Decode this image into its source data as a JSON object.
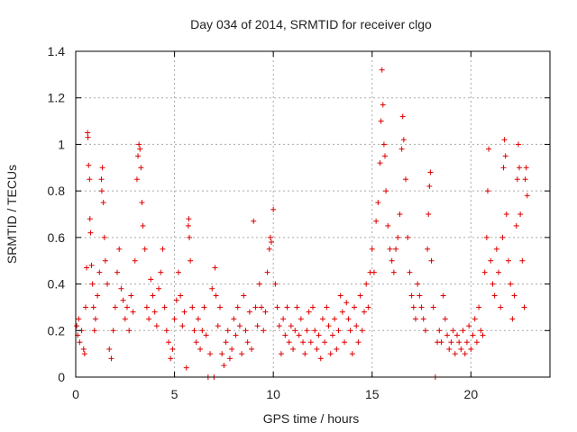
{
  "chart_data": {
    "type": "scatter",
    "title": "Day 034 of 2014, SRMTID for receiver clgo",
    "xlabel": "GPS time / hours",
    "ylabel": "SRMTID / TECUs",
    "xlim": [
      0,
      24
    ],
    "ylim": [
      0,
      1.4
    ],
    "xticks": [
      0,
      5,
      10,
      15,
      20
    ],
    "xtick_labels": [
      "0",
      "5",
      "10",
      "15",
      "20"
    ],
    "yticks": [
      0,
      0.2,
      0.4,
      0.6,
      0.8,
      1,
      1.2,
      1.4
    ],
    "ytick_labels": [
      "0",
      "0.2",
      "0.4",
      "0.6",
      "0.8",
      "1",
      "1.2",
      "1.4"
    ],
    "grid": true,
    "marker": "+",
    "color": "#dd0000",
    "series": [
      {
        "name": "SRMTID",
        "points": [
          [
            0.05,
            0.22
          ],
          [
            0.1,
            0.18
          ],
          [
            0.15,
            0.25
          ],
          [
            0.2,
            0.15
          ],
          [
            0.3,
            0.2
          ],
          [
            0.4,
            0.12
          ],
          [
            0.45,
            0.1
          ],
          [
            0.5,
            0.3
          ],
          [
            0.55,
            0.47
          ],
          [
            0.6,
            1.05
          ],
          [
            0.62,
            1.03
          ],
          [
            0.65,
            0.91
          ],
          [
            0.7,
            0.85
          ],
          [
            0.72,
            0.68
          ],
          [
            0.75,
            0.62
          ],
          [
            0.8,
            0.48
          ],
          [
            0.85,
            0.4
          ],
          [
            0.9,
            0.3
          ],
          [
            0.95,
            0.2
          ],
          [
            1.0,
            0.25
          ],
          [
            1.1,
            0.35
          ],
          [
            1.2,
            0.45
          ],
          [
            1.3,
            0.85
          ],
          [
            1.32,
            0.8
          ],
          [
            1.35,
            0.9
          ],
          [
            1.4,
            0.75
          ],
          [
            1.45,
            0.6
          ],
          [
            1.5,
            0.5
          ],
          [
            1.6,
            0.4
          ],
          [
            1.7,
            0.12
          ],
          [
            1.8,
            0.08
          ],
          [
            1.9,
            0.2
          ],
          [
            2.0,
            0.3
          ],
          [
            2.1,
            0.45
          ],
          [
            2.2,
            0.55
          ],
          [
            2.3,
            0.38
          ],
          [
            2.4,
            0.33
          ],
          [
            2.5,
            0.25
          ],
          [
            2.6,
            0.3
          ],
          [
            2.7,
            0.2
          ],
          [
            2.8,
            0.35
          ],
          [
            2.9,
            0.28
          ],
          [
            3.0,
            0.5
          ],
          [
            3.1,
            0.85
          ],
          [
            3.15,
            0.95
          ],
          [
            3.2,
            1.0
          ],
          [
            3.25,
            0.98
          ],
          [
            3.3,
            0.9
          ],
          [
            3.35,
            0.75
          ],
          [
            3.4,
            0.65
          ],
          [
            3.5,
            0.55
          ],
          [
            3.6,
            0.3
          ],
          [
            3.7,
            0.25
          ],
          [
            3.8,
            0.42
          ],
          [
            3.9,
            0.35
          ],
          [
            4.0,
            0.28
          ],
          [
            4.1,
            0.22
          ],
          [
            4.2,
            0.38
          ],
          [
            4.3,
            0.45
          ],
          [
            4.4,
            0.55
          ],
          [
            4.5,
            0.3
          ],
          [
            4.6,
            0.2
          ],
          [
            4.7,
            0.15
          ],
          [
            4.8,
            0.08
          ],
          [
            4.9,
            0.12
          ],
          [
            5.0,
            0.25
          ],
          [
            5.1,
            0.33
          ],
          [
            5.2,
            0.45
          ],
          [
            5.3,
            0.35
          ],
          [
            5.4,
            0.22
          ],
          [
            5.5,
            0.28
          ],
          [
            5.6,
            0.04
          ],
          [
            5.7,
            0.65
          ],
          [
            5.72,
            0.68
          ],
          [
            5.75,
            0.6
          ],
          [
            5.8,
            0.5
          ],
          [
            5.9,
            0.3
          ],
          [
            6.0,
            0.2
          ],
          [
            6.1,
            0.15
          ],
          [
            6.2,
            0.25
          ],
          [
            6.3,
            0.12
          ],
          [
            6.4,
            0.2
          ],
          [
            6.5,
            0.3
          ],
          [
            6.6,
            0.18
          ],
          [
            6.7,
            0.0
          ],
          [
            6.8,
            0.1
          ],
          [
            6.9,
            0.38
          ],
          [
            7.0,
            0.0
          ],
          [
            7.05,
            0.47
          ],
          [
            7.1,
            0.35
          ],
          [
            7.2,
            0.22
          ],
          [
            7.3,
            0.3
          ],
          [
            7.4,
            0.1
          ],
          [
            7.5,
            0.05
          ],
          [
            7.6,
            0.15
          ],
          [
            7.7,
            0.2
          ],
          [
            7.8,
            0.08
          ],
          [
            7.9,
            0.12
          ],
          [
            8.0,
            0.25
          ],
          [
            8.1,
            0.18
          ],
          [
            8.2,
            0.3
          ],
          [
            8.3,
            0.22
          ],
          [
            8.4,
            0.1
          ],
          [
            8.5,
            0.35
          ],
          [
            8.6,
            0.2
          ],
          [
            8.7,
            0.15
          ],
          [
            8.8,
            0.28
          ],
          [
            8.9,
            0.12
          ],
          [
            9.0,
            0.67
          ],
          [
            9.1,
            0.3
          ],
          [
            9.2,
            0.22
          ],
          [
            9.3,
            0.4
          ],
          [
            9.4,
            0.3
          ],
          [
            9.5,
            0.2
          ],
          [
            9.6,
            0.28
          ],
          [
            9.7,
            0.45
          ],
          [
            9.8,
            0.55
          ],
          [
            9.85,
            0.6
          ],
          [
            9.9,
            0.58
          ],
          [
            10.0,
            0.72
          ],
          [
            10.1,
            0.4
          ],
          [
            10.2,
            0.3
          ],
          [
            10.3,
            0.22
          ],
          [
            10.4,
            0.1
          ],
          [
            10.5,
            0.25
          ],
          [
            10.6,
            0.18
          ],
          [
            10.7,
            0.3
          ],
          [
            10.8,
            0.15
          ],
          [
            10.9,
            0.22
          ],
          [
            11.0,
            0.12
          ],
          [
            11.1,
            0.2
          ],
          [
            11.2,
            0.3
          ],
          [
            11.3,
            0.18
          ],
          [
            11.4,
            0.25
          ],
          [
            11.5,
            0.15
          ],
          [
            11.6,
            0.1
          ],
          [
            11.7,
            0.2
          ],
          [
            11.8,
            0.28
          ],
          [
            11.9,
            0.15
          ],
          [
            12.0,
            0.3
          ],
          [
            12.1,
            0.2
          ],
          [
            12.2,
            0.12
          ],
          [
            12.3,
            0.18
          ],
          [
            12.4,
            0.08
          ],
          [
            12.5,
            0.25
          ],
          [
            12.6,
            0.15
          ],
          [
            12.7,
            0.3
          ],
          [
            12.8,
            0.22
          ],
          [
            12.9,
            0.1
          ],
          [
            13.0,
            0.18
          ],
          [
            13.1,
            0.25
          ],
          [
            13.2,
            0.12
          ],
          [
            13.3,
            0.2
          ],
          [
            13.4,
            0.35
          ],
          [
            13.5,
            0.28
          ],
          [
            13.6,
            0.15
          ],
          [
            13.7,
            0.32
          ],
          [
            13.8,
            0.25
          ],
          [
            13.9,
            0.2
          ],
          [
            14.0,
            0.1
          ],
          [
            14.1,
            0.3
          ],
          [
            14.2,
            0.22
          ],
          [
            14.3,
            0.15
          ],
          [
            14.4,
            0.35
          ],
          [
            14.5,
            0.2
          ],
          [
            14.6,
            0.28
          ],
          [
            14.7,
            0.4
          ],
          [
            14.8,
            0.3
          ],
          [
            14.9,
            0.45
          ],
          [
            15.0,
            0.55
          ],
          [
            15.1,
            0.45
          ],
          [
            15.2,
            0.67
          ],
          [
            15.3,
            0.75
          ],
          [
            15.4,
            0.92
          ],
          [
            15.45,
            1.1
          ],
          [
            15.5,
            1.32
          ],
          [
            15.55,
            1.17
          ],
          [
            15.6,
            1.0
          ],
          [
            15.65,
            0.95
          ],
          [
            15.7,
            0.8
          ],
          [
            15.8,
            0.65
          ],
          [
            15.9,
            0.55
          ],
          [
            16.0,
            0.5
          ],
          [
            16.1,
            0.45
          ],
          [
            16.2,
            0.55
          ],
          [
            16.3,
            0.6
          ],
          [
            16.4,
            0.7
          ],
          [
            16.5,
            0.98
          ],
          [
            16.55,
            1.12
          ],
          [
            16.6,
            1.02
          ],
          [
            16.7,
            0.85
          ],
          [
            16.8,
            0.6
          ],
          [
            16.9,
            0.45
          ],
          [
            17.0,
            0.35
          ],
          [
            17.1,
            0.3
          ],
          [
            17.2,
            0.25
          ],
          [
            17.3,
            0.4
          ],
          [
            17.4,
            0.35
          ],
          [
            17.5,
            0.3
          ],
          [
            17.6,
            0.25
          ],
          [
            17.7,
            0.2
          ],
          [
            17.8,
            0.55
          ],
          [
            17.85,
            0.7
          ],
          [
            17.9,
            0.82
          ],
          [
            17.95,
            0.88
          ],
          [
            18.0,
            0.5
          ],
          [
            18.1,
            0.3
          ],
          [
            18.2,
            0.0
          ],
          [
            18.3,
            0.15
          ],
          [
            18.4,
            0.2
          ],
          [
            18.5,
            0.15
          ],
          [
            18.6,
            0.35
          ],
          [
            18.7,
            0.25
          ],
          [
            18.8,
            0.18
          ],
          [
            18.9,
            0.12
          ],
          [
            19.0,
            0.15
          ],
          [
            19.1,
            0.2
          ],
          [
            19.2,
            0.1
          ],
          [
            19.3,
            0.18
          ],
          [
            19.4,
            0.15
          ],
          [
            19.5,
            0.12
          ],
          [
            19.6,
            0.2
          ],
          [
            19.7,
            0.1
          ],
          [
            19.8,
            0.15
          ],
          [
            19.9,
            0.22
          ],
          [
            20.0,
            0.12
          ],
          [
            20.1,
            0.18
          ],
          [
            20.2,
            0.25
          ],
          [
            20.3,
            0.15
          ],
          [
            20.4,
            0.3
          ],
          [
            20.5,
            0.2
          ],
          [
            20.6,
            0.18
          ],
          [
            20.7,
            0.45
          ],
          [
            20.8,
            0.6
          ],
          [
            20.85,
            0.8
          ],
          [
            20.9,
            0.98
          ],
          [
            21.0,
            0.5
          ],
          [
            21.1,
            0.4
          ],
          [
            21.2,
            0.35
          ],
          [
            21.3,
            0.55
          ],
          [
            21.4,
            0.45
          ],
          [
            21.5,
            0.3
          ],
          [
            21.6,
            0.6
          ],
          [
            21.65,
            0.9
          ],
          [
            21.7,
            1.02
          ],
          [
            21.75,
            0.95
          ],
          [
            21.8,
            0.7
          ],
          [
            21.9,
            0.5
          ],
          [
            22.0,
            0.4
          ],
          [
            22.1,
            0.25
          ],
          [
            22.2,
            0.35
          ],
          [
            22.3,
            0.65
          ],
          [
            22.35,
            0.85
          ],
          [
            22.4,
            1.0
          ],
          [
            22.45,
            0.9
          ],
          [
            22.5,
            0.7
          ],
          [
            22.6,
            0.5
          ],
          [
            22.7,
            0.3
          ],
          [
            22.75,
            0.85
          ],
          [
            22.8,
            0.9
          ],
          [
            22.85,
            0.78
          ]
        ]
      }
    ]
  }
}
